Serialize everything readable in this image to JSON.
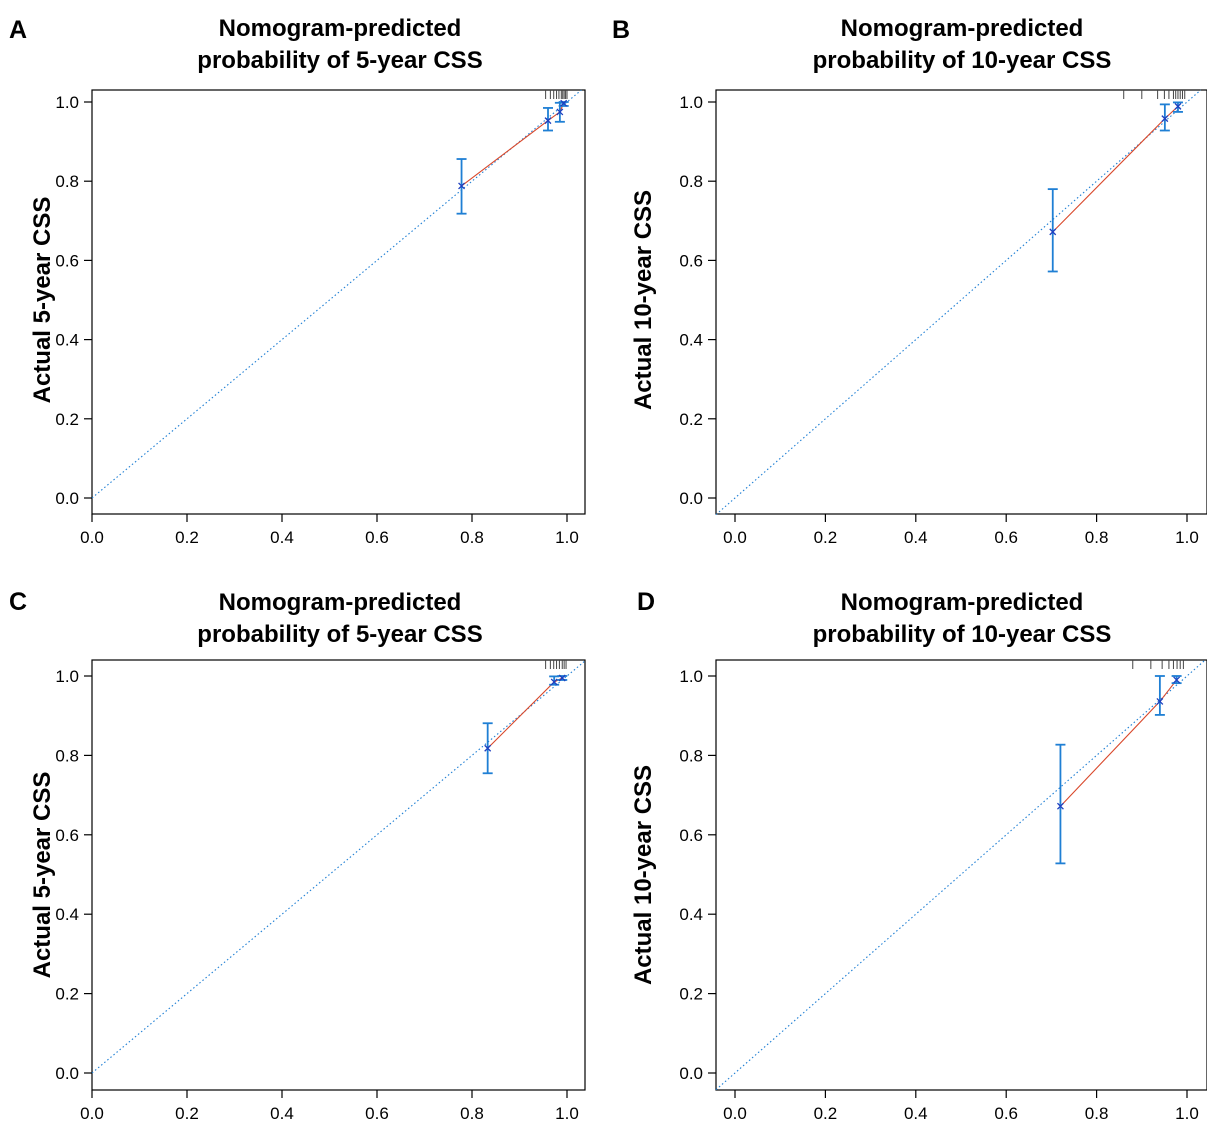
{
  "colors": {
    "ideal": "#1f7fd4",
    "fit": "#d9482b",
    "ci": "#1f7fd4",
    "point": "#1f3fbf",
    "rug": "#444444"
  },
  "panels": [
    {
      "label": "A",
      "title_line1": "Nomogram-predicted",
      "title_line2": "probability of 5-year CSS",
      "ylabel": "Actual 5-year CSS",
      "xticks": [
        "0.0",
        "0.2",
        "0.4",
        "0.6",
        "0.8",
        "1.0"
      ],
      "yticks": [
        "0.0",
        "0.2",
        "0.4",
        "0.6",
        "0.8",
        "1.0"
      ]
    },
    {
      "label": "B",
      "title_line1": "Nomogram-predicted",
      "title_line2": "probability of 10-year CSS",
      "ylabel": "Actual 10-year CSS",
      "xticks": [
        "0.0",
        "0.2",
        "0.4",
        "0.6",
        "0.8",
        "1.0"
      ],
      "yticks": [
        "0.0",
        "0.2",
        "0.4",
        "0.6",
        "0.8",
        "1.0"
      ]
    },
    {
      "label": "C",
      "title_line1": "Nomogram-predicted",
      "title_line2": "probability of 5-year CSS",
      "ylabel": "Actual 5-year CSS",
      "xticks": [
        "0.0",
        "0.2",
        "0.4",
        "0.6",
        "0.8",
        "1.0"
      ],
      "yticks": [
        "0.0",
        "0.2",
        "0.4",
        "0.6",
        "0.8",
        "1.0"
      ]
    },
    {
      "label": "D",
      "title_line1": "Nomogram-predicted",
      "title_line2": "probability of 10-year CSS",
      "ylabel": "Actual 10-year CSS",
      "xticks": [
        "0.0",
        "0.2",
        "0.4",
        "0.6",
        "0.8",
        "1.0"
      ],
      "yticks": [
        "0.0",
        "0.2",
        "0.4",
        "0.6",
        "0.8",
        "1.0"
      ]
    }
  ],
  "chart_data": [
    {
      "type": "scatter",
      "title": "Nomogram-predicted probability of 5-year CSS",
      "ylabel": "Actual 5-year CSS",
      "xlim": [
        0.0,
        1.0
      ],
      "ylim": [
        0.0,
        1.0
      ],
      "grid": false,
      "points": [
        {
          "x": 0.778,
          "y": 0.788,
          "lo": 0.718,
          "hi": 0.856
        },
        {
          "x": 0.96,
          "y": 0.953,
          "lo": 0.928,
          "hi": 0.985
        },
        {
          "x": 0.985,
          "y": 0.975,
          "lo": 0.95,
          "hi": 0.998
        },
        {
          "x": 0.993,
          "y": 0.997,
          "lo": 0.99,
          "hi": 1.0
        }
      ],
      "rug_x": [
        0.955,
        0.965,
        0.972,
        0.978,
        0.983,
        0.988,
        0.991,
        0.994,
        0.997,
        1.0
      ]
    },
    {
      "type": "scatter",
      "title": "Nomogram-predicted probability of 10-year CSS",
      "ylabel": "Actual 10-year CSS",
      "xlim": [
        0.0,
        1.0
      ],
      "ylim": [
        0.0,
        1.0
      ],
      "grid": false,
      "points": [
        {
          "x": 0.703,
          "y": 0.672,
          "lo": 0.572,
          "hi": 0.78
        },
        {
          "x": 0.951,
          "y": 0.958,
          "lo": 0.928,
          "hi": 0.994
        },
        {
          "x": 0.98,
          "y": 0.989,
          "lo": 0.975,
          "hi": 0.999
        }
      ],
      "rug_x": [
        0.86,
        0.9,
        0.935,
        0.95,
        0.96,
        0.97,
        0.975,
        0.98,
        0.985,
        0.99,
        0.995
      ]
    },
    {
      "type": "scatter",
      "title": "Nomogram-predicted probability of 5-year CSS",
      "ylabel": "Actual 5-year CSS",
      "xlim": [
        0.0,
        1.0
      ],
      "ylim": [
        0.0,
        1.0
      ],
      "grid": false,
      "points": [
        {
          "x": 0.833,
          "y": 0.818,
          "lo": 0.755,
          "hi": 0.881
        },
        {
          "x": 0.973,
          "y": 0.985,
          "lo": 0.978,
          "hi": 0.999
        },
        {
          "x": 0.99,
          "y": 0.995,
          "lo": 0.99,
          "hi": 1.0
        }
      ],
      "rug_x": [
        0.955,
        0.965,
        0.972,
        0.978,
        0.984,
        0.99,
        0.994,
        0.998
      ]
    },
    {
      "type": "scatter",
      "title": "Nomogram-predicted probability of 10-year CSS",
      "ylabel": "Actual 10-year CSS",
      "xlim": [
        0.0,
        1.0
      ],
      "ylim": [
        0.0,
        1.0
      ],
      "grid": false,
      "points": [
        {
          "x": 0.72,
          "y": 0.672,
          "lo": 0.528,
          "hi": 0.827
        },
        {
          "x": 0.94,
          "y": 0.936,
          "lo": 0.902,
          "hi": 1.0
        },
        {
          "x": 0.977,
          "y": 0.99,
          "lo": 0.982,
          "hi": 1.0
        }
      ],
      "rug_x": [
        0.88,
        0.92,
        0.945,
        0.96,
        0.97,
        0.978,
        0.985,
        0.992
      ]
    }
  ]
}
